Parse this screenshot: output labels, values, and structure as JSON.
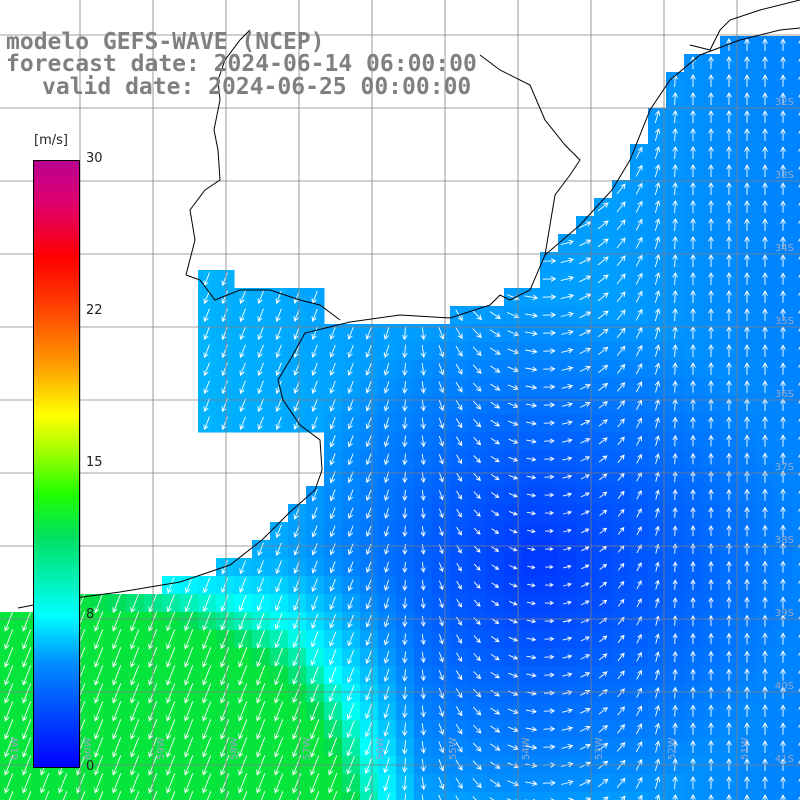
{
  "title": {
    "line1": "modelo GEFS-WAVE (NCEP)",
    "line2": "forecast date: 2024-06-14 06:00:00",
    "line3": "valid date: 2024-06-25 00:00:00"
  },
  "colorbar": {
    "units": "[m/s]",
    "ticks": [
      "30",
      "22",
      "15",
      "8",
      "0"
    ],
    "tick_values": [
      30,
      22,
      15,
      8,
      0
    ],
    "colors": [
      "#0000ff",
      "#008cff",
      "#00ffff",
      "#00e060",
      "#20ff00",
      "#ffff00",
      "#ff4000",
      "#ff0000",
      "#b80090"
    ]
  },
  "map": {
    "lat_labels": [
      "32S",
      "33S",
      "34S",
      "35S",
      "36S",
      "37S",
      "38S",
      "39S",
      "40S",
      "41S"
    ],
    "lon_labels": [
      "61W",
      "60W",
      "59W",
      "58W",
      "57W",
      "56W",
      "55W",
      "54W",
      "53W",
      "52W",
      "51W"
    ],
    "land_color": "#ffffff",
    "grid_color": "#808080",
    "arrow_color": "#ffffff"
  }
}
